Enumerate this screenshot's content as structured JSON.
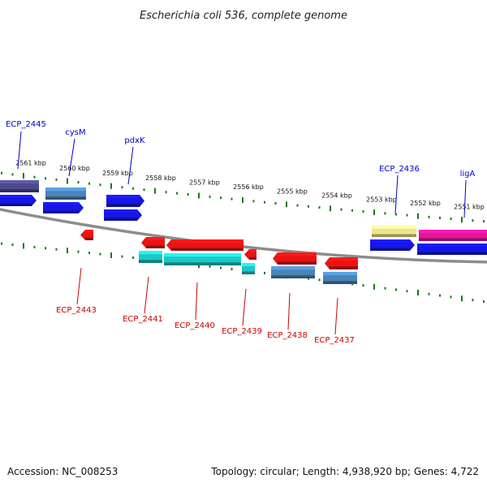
{
  "title": "Escherichia coli 536, complete genome",
  "footer": {
    "accession": "Accession: NC_008253",
    "topology": "Topology: circular; Length: 4,938,920 bp; Genes: 4,722"
  },
  "colors": {
    "background": "#ffffff",
    "backbone": "#8c8c8c",
    "ticks": "#1a7a1a",
    "forward_label": "#0000cc",
    "reverse_label": "#cc0000",
    "blue": "#1616e6",
    "steelblue": "#4a84b8",
    "slate": "#4a4a8c",
    "red": "#e81414",
    "cyan": "#1ec8c8",
    "khaki": "#eee68c",
    "magenta": "#e01896"
  },
  "scale": {
    "unit": "kbp",
    "labels": [
      "2561 kbp",
      "2560 kbp",
      "2559 kbp",
      "2558 kbp",
      "2557 kbp",
      "2556 kbp",
      "2555 kbp",
      "2554 kbp",
      "2553 kbp",
      "2552 kbp",
      "2551 kbp"
    ]
  },
  "genes": {
    "forward": [
      {
        "label": "ECP_2445",
        "color": "slate"
      },
      {
        "label": "cysM",
        "color": "steelblue"
      },
      {
        "label": "pdxK",
        "color": "blue"
      },
      {
        "label": "ECP_2436",
        "color": "khaki"
      },
      {
        "label": "ligA",
        "color": "magenta"
      }
    ],
    "reverse": [
      {
        "label": "ECP_2443",
        "color": "red"
      },
      {
        "label": "ECP_2441",
        "color": "cyan"
      },
      {
        "label": "ECP_2440",
        "color": "cyan"
      },
      {
        "label": "ECP_2439",
        "color": "cyan"
      },
      {
        "label": "ECP_2438",
        "color": "steelblue"
      },
      {
        "label": "ECP_2437",
        "color": "steelblue"
      }
    ]
  }
}
